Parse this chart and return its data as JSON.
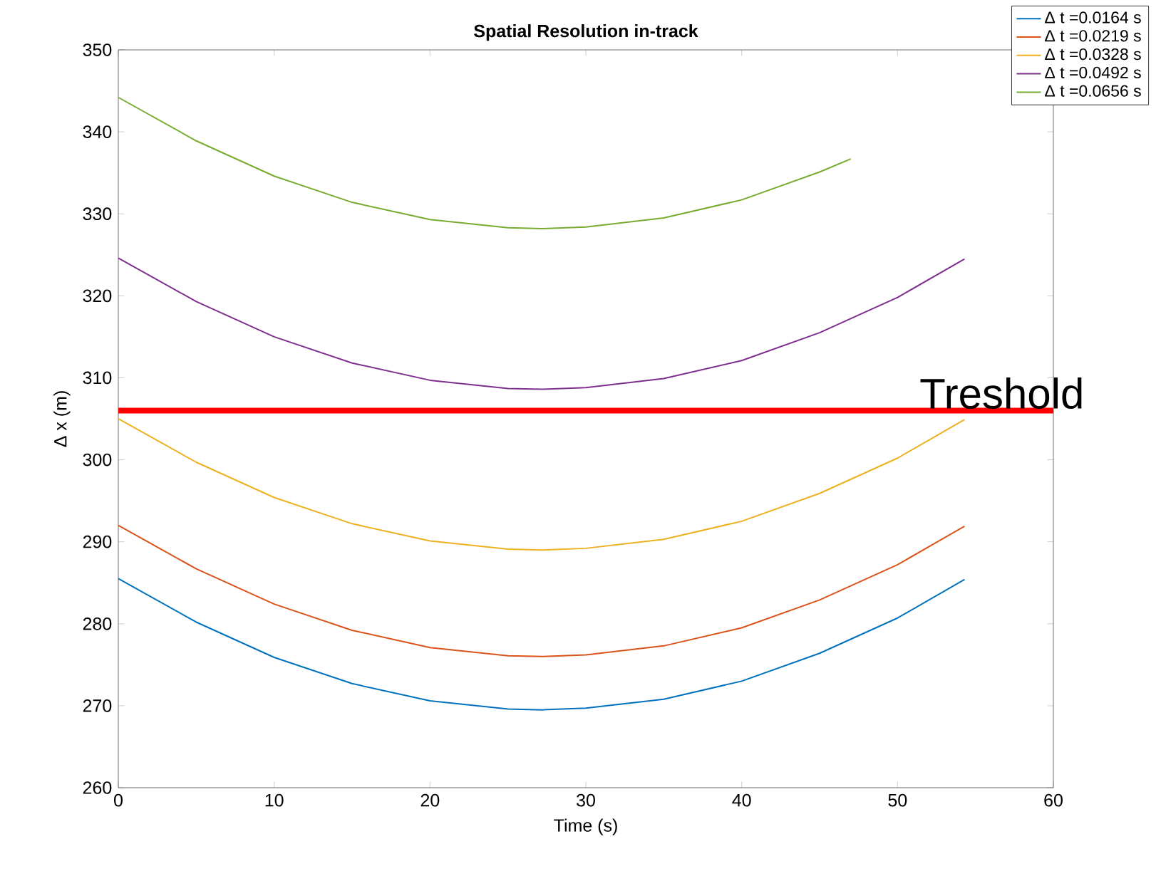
{
  "chart_data": {
    "type": "line",
    "title": "Spatial Resolution in-track",
    "xlabel": "Time (s)",
    "ylabel": "Δ x (m)",
    "x": [
      0,
      5,
      10,
      15,
      20,
      25,
      27.2,
      30,
      35,
      40,
      45,
      50,
      54.3
    ],
    "series": [
      {
        "name": "Δ t =0.0164 s",
        "color": "#0072bd",
        "values": [
          285.5,
          280.2,
          275.9,
          272.7,
          270.6,
          269.6,
          269.5,
          269.7,
          270.8,
          273.0,
          276.4,
          280.7,
          285.4
        ]
      },
      {
        "name": "Δ t =0.0219 s",
        "color": "#d95319",
        "values": [
          292.0,
          286.7,
          282.4,
          279.2,
          277.1,
          276.1,
          276.0,
          276.2,
          277.3,
          279.5,
          282.9,
          287.2,
          291.9
        ]
      },
      {
        "name": "Δ t =0.0328 s",
        "color": "#edb120",
        "values": [
          305.0,
          299.7,
          295.4,
          292.2,
          290.1,
          289.1,
          289.0,
          289.2,
          290.3,
          292.5,
          295.9,
          300.2,
          304.9
        ]
      },
      {
        "name": "Δ t =0.0492 s",
        "color": "#7e2f8e",
        "values": [
          324.6,
          319.3,
          315.0,
          311.8,
          309.7,
          308.7,
          308.6,
          308.8,
          309.9,
          312.1,
          315.5,
          319.8,
          324.5
        ]
      },
      {
        "name": "Δ t =0.0656 s",
        "color": "#77ac30",
        "x": [
          0,
          5,
          10,
          15,
          20,
          25,
          27.2,
          30,
          35,
          40,
          45,
          47
        ],
        "values": [
          344.2,
          338.9,
          334.6,
          331.4,
          329.3,
          328.3,
          328.2,
          328.4,
          329.5,
          331.7,
          335.1,
          336.7
        ]
      }
    ],
    "ref_lines": [
      {
        "axis": "y",
        "value": 306,
        "label": "Treshold",
        "color": "#ff0000"
      }
    ],
    "xlim": [
      0,
      60
    ],
    "ylim": [
      260,
      350
    ],
    "xticks": [
      0,
      10,
      20,
      30,
      40,
      50,
      60
    ],
    "yticks": [
      260,
      270,
      280,
      290,
      300,
      310,
      320,
      330,
      340,
      350
    ],
    "grid": false,
    "legend": "top right",
    "marker": "none",
    "line_style": "solid"
  }
}
